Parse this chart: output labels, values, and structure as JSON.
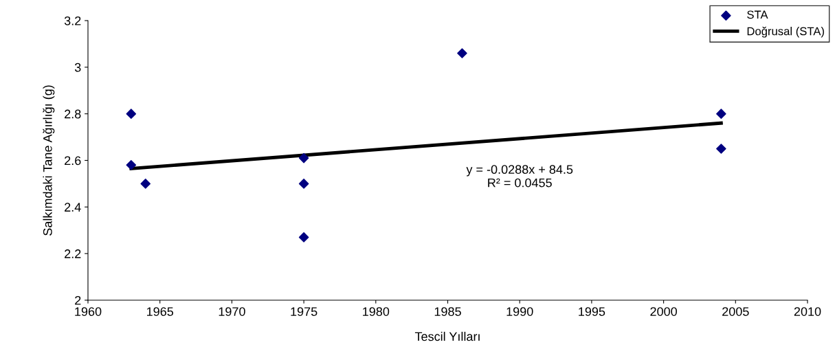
{
  "chart_data": {
    "type": "scatter",
    "xlabel": "Tescil Yılları",
    "ylabel": "Salkımdaki Tane Ağırlığı (g)",
    "series": [
      {
        "name": "STA",
        "color": "#000080",
        "marker": "diamond",
        "x": [
          1963,
          1963,
          1964,
          1975,
          1975,
          1975,
          1986,
          2004,
          2004
        ],
        "values": [
          2.8,
          2.58,
          2.5,
          2.61,
          2.5,
          2.27,
          3.06,
          2.8,
          2.65
        ]
      },
      {
        "name": "Doğrusal (STA)",
        "type": "line",
        "color": "#000000",
        "x": [
          1963,
          2004
        ],
        "values": [
          2.565,
          2.76
        ]
      }
    ],
    "annotations": [
      "y = -0.0288x + 84.5\nR² = 0.0455"
    ],
    "xlim": [
      1960,
      2010
    ],
    "xticks": [
      1960,
      1965,
      1970,
      1975,
      1980,
      1985,
      1990,
      1995,
      2000,
      2005,
      2010
    ],
    "ylim": [
      2,
      3.2
    ],
    "yticks": [
      2,
      2.2,
      2.4,
      2.6,
      2.8,
      3,
      3.2
    ],
    "grid": false,
    "legend": "top right"
  }
}
